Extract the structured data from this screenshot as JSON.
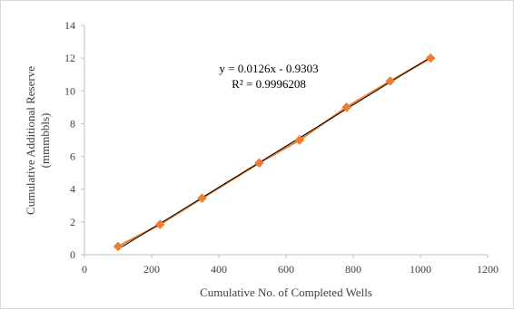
{
  "chart_data": {
    "type": "scatter",
    "title": "",
    "xlabel": "Cumulative  No. of Completed  Wells",
    "ylabel_line1": "Cumulative  Additional  Reserve",
    "ylabel_line2": "(mmmbbls)",
    "xlim": [
      0,
      1200
    ],
    "ylim": [
      0,
      14
    ],
    "xticks": [
      0,
      200,
      400,
      600,
      800,
      1000,
      1200
    ],
    "yticks": [
      0,
      2,
      4,
      6,
      8,
      10,
      12,
      14
    ],
    "grid": false,
    "legend": "none",
    "series": [
      {
        "marker": "diamond",
        "color": "#ED7D31",
        "x": [
          100,
          225,
          350,
          520,
          640,
          780,
          910,
          1030
        ],
        "y": [
          0.5,
          1.85,
          3.45,
          5.6,
          7.0,
          9.0,
          10.6,
          12.0
        ]
      }
    ],
    "trendline": {
      "slope": 0.0126,
      "intercept": -0.9303,
      "x_from": 100,
      "x_to": 1030,
      "color": "#000000",
      "equation": "y = 0.0126x  - 0.9303",
      "r2_label": "R² = 0.9996208"
    },
    "axis_color": "#bfbfbf"
  }
}
